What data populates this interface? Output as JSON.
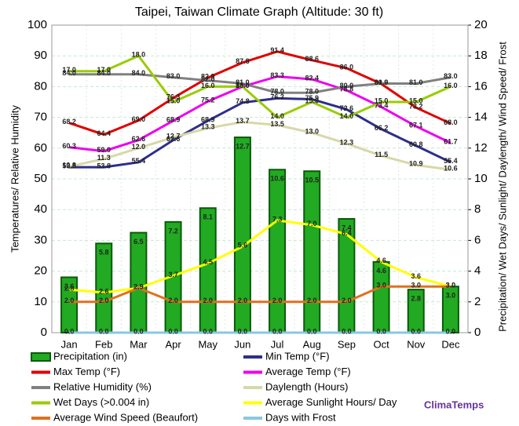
{
  "chart_data": {
    "type": "combo",
    "title": "Taipei, Taiwan Climate Graph (Altitude: 30 ft)",
    "ylabel": "Temperatures/ Relative Humidity",
    "y2label": "Precipitation/ Wet Days/ Sunlight/ Daylength/ Wind Speed/ Frost",
    "watermark": "ClimaTemps",
    "categories": [
      "Jan",
      "Feb",
      "Mar",
      "Apr",
      "May",
      "Jun",
      "Jul",
      "Aug",
      "Sep",
      "Oct",
      "Nov",
      "Dec"
    ],
    "ylim": [
      0,
      100
    ],
    "yticks": [
      0,
      10,
      20,
      30,
      40,
      50,
      60,
      70,
      80,
      90,
      100
    ],
    "y2lim": [
      0,
      20
    ],
    "y2ticks": [
      0,
      2,
      4,
      6,
      8,
      10,
      12,
      14,
      16,
      18,
      20
    ],
    "grid": true,
    "series": [
      {
        "name": "Precipitation (in)",
        "type": "bar",
        "axis": "y2",
        "color": "#22aa22",
        "values": [
          3.6,
          5.8,
          6.5,
          7.2,
          8.1,
          12.7,
          10.6,
          10.5,
          7.4,
          4.6,
          2.8,
          3.0
        ],
        "value_labels": [
          "3.6",
          "5.8",
          "6.5",
          "7.2",
          "8.1",
          "12.7",
          "10.6",
          "10.5",
          "7.4",
          "4.6",
          "2.8",
          "3.0"
        ]
      },
      {
        "name": "Min Temp (°F)",
        "type": "line",
        "color": "#2e2e8a",
        "values": [
          53.8,
          53.8,
          55.4,
          62.6,
          68.9,
          74.8,
          76.2,
          75.9,
          72.6,
          66.2,
          60.8,
          55.4
        ],
        "value_labels": [
          "53.8",
          "53.8",
          "55.4",
          "62.6",
          "68.9",
          "74.8",
          "76.2",
          "75.9",
          "72.6",
          "66.2",
          "60.8",
          "55.4"
        ]
      },
      {
        "name": "Max Temp (°F)",
        "type": "line",
        "color": "#e00000",
        "values": [
          68.2,
          64.4,
          69.0,
          76.3,
          82.9,
          87.8,
          91.4,
          88.6,
          86.0,
          80.9,
          73.2,
          68.0
        ],
        "value_labels": [
          "68.2",
          "64.4",
          "69.0",
          "76.3",
          "82.9",
          "87.8",
          "91.4",
          "88.6",
          "86.0",
          "80.9",
          "73.2",
          "68.0"
        ]
      },
      {
        "name": "Average Temp (°F)",
        "type": "line",
        "color": "#ee00ee",
        "values": [
          60.3,
          59.0,
          62.6,
          68.9,
          75.2,
          80.0,
          83.3,
          82.4,
          78.8,
          73.4,
          67.1,
          61.7
        ],
        "value_labels": [
          "60.3",
          "59.0",
          "62.6",
          "68.9",
          "75.2",
          "80.0",
          "83.3",
          "82.4",
          "78.8",
          "73.4",
          "67.1",
          "61.7"
        ]
      },
      {
        "name": "Relative Humidity (%)",
        "type": "line",
        "color": "#808080",
        "values": [
          84.0,
          84.0,
          84.0,
          83.0,
          82.0,
          81.0,
          78.0,
          78.0,
          80.0,
          81.0,
          81.0,
          83.0
        ],
        "value_labels": [
          "84.0",
          "84.0",
          "84.0",
          "83.0",
          "82.0",
          "81.0",
          "78.0",
          "78.0",
          "80.0",
          "81.0",
          "81.0",
          "83.0"
        ]
      },
      {
        "name": "Daylength (Hours)",
        "type": "line",
        "axis": "y2",
        "color": "#d8d8a8",
        "values": [
          10.8,
          11.3,
          12.0,
          12.7,
          13.3,
          13.7,
          13.5,
          13.0,
          12.3,
          11.5,
          10.9,
          10.6
        ],
        "value_labels": [
          "10.8",
          "11.3",
          "12.0",
          "12.7",
          "13.3",
          "13.7",
          "13.5",
          "13.0",
          "12.3",
          "11.5",
          "10.9",
          "10.6"
        ]
      },
      {
        "name": "Wet Days (>0.004 in)",
        "type": "line",
        "axis": "y2",
        "color": "#99cc00",
        "values": [
          17.0,
          17.0,
          18.0,
          15.0,
          16.0,
          16.0,
          14.0,
          15.0,
          14.0,
          15.0,
          15.0,
          16.0
        ],
        "value_labels": [
          "17.0",
          "17.0",
          "18.0",
          "15.0",
          "16.0",
          "16.0",
          "14.0",
          "15.0",
          "14.0",
          "15.0",
          "15.0",
          "16.0"
        ]
      },
      {
        "name": "Average Sunlight Hours/ Day",
        "type": "line",
        "axis": "y2",
        "color": "#ffff00",
        "values": [
          2.8,
          2.6,
          2.9,
          3.7,
          4.5,
          5.6,
          7.3,
          7.0,
          6.4,
          4.6,
          3.6,
          3.0
        ],
        "value_labels": [
          "2.8",
          "2.6",
          "2.9",
          "3.7",
          "4.5",
          "5.6",
          "7.3",
          "7.0",
          "6.4",
          "4.6",
          "3.6",
          "3.0"
        ]
      },
      {
        "name": "Average Wind Speed (Beaufort)",
        "type": "line",
        "axis": "y2",
        "color": "#e07020",
        "values": [
          2.0,
          2.0,
          2.9,
          2.0,
          2.0,
          2.0,
          2.0,
          2.0,
          2.0,
          3.0,
          3.0,
          3.0
        ],
        "value_labels": [
          "2.0",
          "2.0",
          "2.9",
          "2.0",
          "2.0",
          "2.0",
          "2.0",
          "2.0",
          "2.0",
          "3.0",
          "3.0",
          "3.0"
        ]
      },
      {
        "name": "Days with Frost",
        "type": "line",
        "axis": "y2",
        "color": "#88c8e0",
        "values": [
          0,
          0,
          0,
          0,
          0,
          0,
          0,
          0,
          0,
          0,
          0,
          0
        ],
        "value_labels": [
          "0.0",
          "0.0",
          "0.0",
          "0.0",
          "0.0",
          "0.0",
          "0.0",
          "0.0",
          "0.0",
          "0.0",
          "0.0",
          "0.0"
        ]
      }
    ]
  }
}
